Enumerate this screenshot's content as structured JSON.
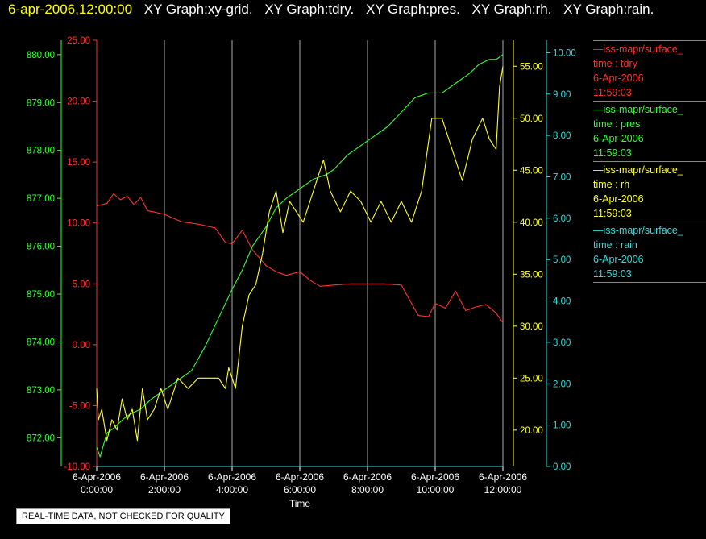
{
  "header": {
    "timestamp": "6-apr-2006,12:00:00",
    "graphs": [
      "XY Graph:xy-grid.",
      "XY Graph:tdry.",
      "XY Graph:pres.",
      "XY Graph:rh.",
      "XY Graph:rain."
    ]
  },
  "legend": [
    {
      "source": "—iss-mapr/surface_",
      "param": "time : tdry",
      "date": "6-Apr-2006",
      "time": "11:59:03",
      "color": "#ff3030"
    },
    {
      "source": "—iss-mapr/surface_",
      "param": "time : pres",
      "date": "6-Apr-2006",
      "time": "11:59:03",
      "color": "#33ff33"
    },
    {
      "source": "—iss-mapr/surface_",
      "param": "time : rh",
      "date": "6-Apr-2006",
      "time": "11:59:03",
      "color": "#ffff33"
    },
    {
      "source": "—iss-mapr/surface_",
      "param": "time : rain",
      "date": "6-Apr-2006",
      "time": "11:59:03",
      "color": "#33dddd"
    }
  ],
  "quality_note": "REAL-TIME DATA, NOT CHECKED FOR QUALITY",
  "chart_data": {
    "type": "line",
    "xlabel": "Time",
    "x_range_hours": [
      0,
      12
    ],
    "x_ticks": [
      {
        "date": "6-Apr-2006",
        "time": "0:00:00"
      },
      {
        "date": "6-Apr-2006",
        "time": "2:00:00"
      },
      {
        "date": "6-Apr-2006",
        "time": "4:00:00"
      },
      {
        "date": "6-Apr-2006",
        "time": "6:00:00"
      },
      {
        "date": "6-Apr-2006",
        "time": "8:00:00"
      },
      {
        "date": "6-Apr-2006",
        "time": "10:00:00"
      },
      {
        "date": "6-Apr-2006",
        "time": "12:00:00"
      }
    ],
    "grid": "vertical",
    "axes": [
      {
        "id": "tdry",
        "color": "#ff3030",
        "range": [
          -10,
          25
        ],
        "ticks": [
          "-10.00",
          "-5.00",
          "0.00",
          "5.00",
          "10.00",
          "15.00",
          "20.00",
          "25.00"
        ]
      },
      {
        "id": "pres",
        "color": "#33ff33",
        "range": [
          871.4,
          880.3
        ],
        "ticks": [
          "872.00",
          "873.00",
          "874.00",
          "875.00",
          "876.00",
          "877.00",
          "878.00",
          "879.00",
          "880.00"
        ]
      },
      {
        "id": "rh",
        "color": "#ffff33",
        "range": [
          16.5,
          57.5
        ],
        "ticks": [
          "20.00",
          "25.00",
          "30.00",
          "35.00",
          "40.00",
          "45.00",
          "50.00",
          "55.00"
        ]
      },
      {
        "id": "rain",
        "color": "#33dddd",
        "range": [
          0,
          10.3
        ],
        "ticks": [
          "0.00",
          "1.00",
          "2.00",
          "3.00",
          "4.00",
          "5.00",
          "6.00",
          "7.00",
          "8.00",
          "9.00",
          "10.00"
        ]
      }
    ],
    "series": [
      {
        "name": "tdry",
        "axis": "tdry",
        "color": "#ff3030",
        "x": [
          0,
          0.3,
          0.5,
          0.7,
          0.9,
          1.1,
          1.3,
          1.5,
          1.7,
          2,
          2.5,
          3,
          3.5,
          3.8,
          4,
          4.3,
          4.6,
          5,
          5.3,
          5.6,
          6,
          6.3,
          6.6,
          7,
          7.5,
          8,
          8.5,
          9,
          9.5,
          9.8,
          10,
          10.3,
          10.6,
          10.9,
          11.2,
          11.5,
          11.8,
          12
        ],
        "values": [
          11.4,
          11.6,
          12.4,
          11.9,
          12.2,
          11.5,
          12.1,
          11.0,
          10.9,
          10.7,
          10.1,
          9.9,
          9.6,
          8.4,
          8.3,
          9.4,
          7.8,
          6.5,
          6.0,
          5.7,
          6.0,
          5.3,
          4.8,
          4.9,
          5.0,
          5.0,
          5.0,
          4.9,
          2.4,
          2.3,
          3.4,
          3.0,
          4.4,
          2.8,
          3.1,
          3.3,
          2.6,
          1.8
        ]
      },
      {
        "name": "pres",
        "axis": "pres",
        "color": "#33ff33",
        "x": [
          0,
          0.1,
          0.3,
          0.5,
          0.8,
          1,
          1.3,
          1.6,
          1.8,
          2,
          2.4,
          2.8,
          3.2,
          3.6,
          4,
          4.3,
          4.6,
          5,
          5.3,
          5.6,
          6,
          6.4,
          6.8,
          7,
          7.4,
          7.8,
          8.2,
          8.6,
          9,
          9.4,
          9.8,
          10.2,
          10.6,
          11,
          11.3,
          11.6,
          11.8,
          12
        ],
        "values": [
          871.8,
          871.6,
          872.1,
          872.2,
          872.4,
          872.5,
          872.6,
          872.8,
          872.9,
          873.0,
          873.2,
          873.4,
          873.9,
          874.5,
          875.1,
          875.5,
          876.0,
          876.4,
          876.8,
          877.0,
          877.2,
          877.4,
          877.5,
          877.6,
          877.9,
          878.1,
          878.3,
          878.5,
          878.8,
          879.1,
          879.2,
          879.2,
          879.4,
          879.6,
          879.8,
          879.9,
          879.9,
          880.0
        ]
      },
      {
        "name": "rh",
        "axis": "rh",
        "color": "#ffff33",
        "x": [
          0,
          0.05,
          0.15,
          0.3,
          0.45,
          0.6,
          0.75,
          0.9,
          1.05,
          1.2,
          1.35,
          1.5,
          1.7,
          1.9,
          2.1,
          2.4,
          2.7,
          3,
          3.3,
          3.6,
          3.8,
          3.9,
          4.1,
          4.3,
          4.5,
          4.7,
          4.9,
          5.1,
          5.3,
          5.5,
          5.7,
          5.9,
          6.1,
          6.3,
          6.5,
          6.7,
          6.9,
          7.2,
          7.5,
          7.8,
          8.1,
          8.4,
          8.7,
          9,
          9.3,
          9.6,
          9.9,
          10.2,
          10.5,
          10.8,
          11.1,
          11.4,
          11.6,
          11.8,
          11.9,
          12
        ],
        "values": [
          24,
          21,
          22,
          19,
          21,
          20,
          23,
          21,
          22,
          19,
          24,
          21,
          22,
          24,
          22,
          25,
          24,
          25,
          25,
          25,
          24,
          26,
          24,
          30,
          33,
          34,
          37,
          41,
          43,
          39,
          42,
          41,
          40,
          42,
          44,
          46,
          43,
          41,
          43,
          42,
          40,
          42,
          40,
          42,
          40,
          43,
          50,
          50,
          47,
          44,
          48,
          50,
          48,
          47,
          53,
          55
        ]
      },
      {
        "name": "rain",
        "axis": "rain",
        "color": "#33dddd",
        "x": [
          0,
          12
        ],
        "values": [
          0,
          0
        ]
      }
    ]
  }
}
